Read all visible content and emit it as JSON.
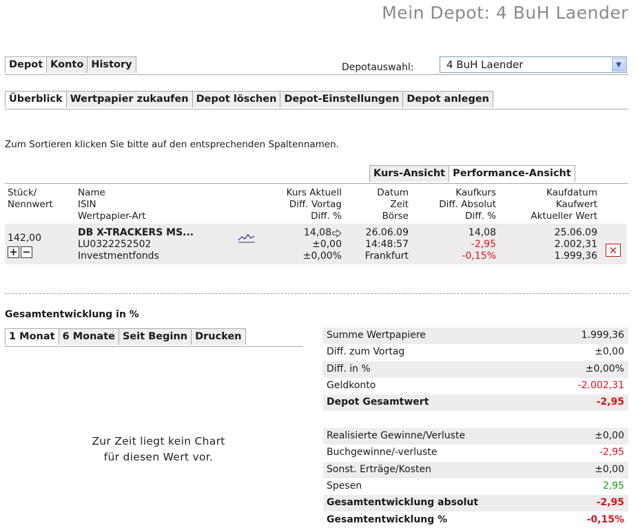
{
  "page_title": "Mein Depot: 4 BuH Laender",
  "main_tabs": [
    {
      "label": "Depot",
      "active": true
    },
    {
      "label": "Konto",
      "active": false
    },
    {
      "label": "History",
      "active": false
    }
  ],
  "depotauswahl": {
    "label": "Depotauswahl:",
    "selected": "4 BuH Laender"
  },
  "sub_tabs": [
    {
      "label": "Überblick",
      "active": true
    },
    {
      "label": "Wertpapier zukaufen",
      "active": false
    },
    {
      "label": "Depot löschen",
      "active": false
    },
    {
      "label": "Depot-Einstellungen",
      "active": false
    },
    {
      "label": "Depot anlegen",
      "active": false
    }
  ],
  "sort_hint": "Zum Sortieren klicken Sie bitte auf den entsprechenden Spaltennamen.",
  "view_tabs": [
    {
      "label": "Kurs-Ansicht",
      "active": false
    },
    {
      "label": "Performance-Ansicht",
      "active": true
    }
  ],
  "columns": {
    "stueck": [
      "Stück/",
      "Nennwert"
    ],
    "name": [
      "Name",
      "ISIN",
      "Wertpapier-Art"
    ],
    "kurs": [
      "Kurs Aktuell",
      "Diff. Vortag",
      "Diff. %"
    ],
    "datum": [
      "Datum",
      "Zeit",
      "Börse"
    ],
    "kaufkurs": [
      "Kaufkurs",
      "Diff. Absolut",
      "Diff. %"
    ],
    "kaufdatum": [
      "Kaufdatum",
      "Kaufwert",
      "Aktueller Wert"
    ]
  },
  "position": {
    "stueck": "142,00",
    "name": "DB X-TRACKERS MS...",
    "isin": "LU0322252502",
    "art": "Investmentfonds",
    "kurs_aktuell": "14,08",
    "diff_vortag": "±0,00",
    "diff_pct": "±0,00%",
    "datum": "26.06.09",
    "zeit": "14:48:57",
    "boerse": "Frankfurt",
    "kaufkurs": "14,08",
    "diff_absolut": "-2,95",
    "diff_pct_kauf": "-0,15%",
    "kaufdatum": "25.06.09",
    "kaufwert": "2.002,31",
    "aktueller_wert": "1.999,36",
    "plus": "+",
    "minus": "−",
    "delete": "✕"
  },
  "section_title": "Gesamtentwicklung in %",
  "period_tabs": [
    {
      "label": "1 Monat",
      "active": true
    },
    {
      "label": "6 Monate",
      "active": false
    },
    {
      "label": "Seit Beginn",
      "active": false
    },
    {
      "label": "Drucken",
      "active": false
    }
  ],
  "no_chart": [
    "Zur Zeit liegt kein Chart",
    "für diesen Wert vor."
  ],
  "summary1": [
    {
      "label": "Summe Wertpapiere",
      "value": "1.999,36",
      "color": "normal",
      "bold": false
    },
    {
      "label": "Diff. zum Vortag",
      "value": "±0,00",
      "color": "normal",
      "bold": false
    },
    {
      "label": "Diff. in %",
      "value": "±0,00%",
      "color": "normal",
      "bold": false
    },
    {
      "label": "Geldkonto",
      "value": "-2.002,31",
      "color": "red",
      "bold": false
    },
    {
      "label": "Depot Gesamtwert",
      "value": "-2,95",
      "color": "red",
      "bold": true
    }
  ],
  "summary2": [
    {
      "label": "Realisierte Gewinne/Verluste",
      "value": "±0,00",
      "color": "normal",
      "bold": false
    },
    {
      "label": "Buchgewinne/-verluste",
      "value": "-2,95",
      "color": "red",
      "bold": false
    },
    {
      "label": "Sonst. Erträge/Kosten",
      "value": "±0,00",
      "color": "normal",
      "bold": false
    },
    {
      "label": "Spesen",
      "value": "2,95",
      "color": "green",
      "bold": false
    },
    {
      "label": "Gesamtentwicklung absolut",
      "value": "-2,95",
      "color": "red",
      "bold": true
    },
    {
      "label": "Gesamtentwicklung %",
      "value": "-0,15%",
      "color": "red",
      "bold": true
    }
  ],
  "colors": {
    "red": "#e0101a",
    "green": "#169c1e",
    "row_shade": "#eeecec",
    "tab_bg": "#efeeee"
  }
}
